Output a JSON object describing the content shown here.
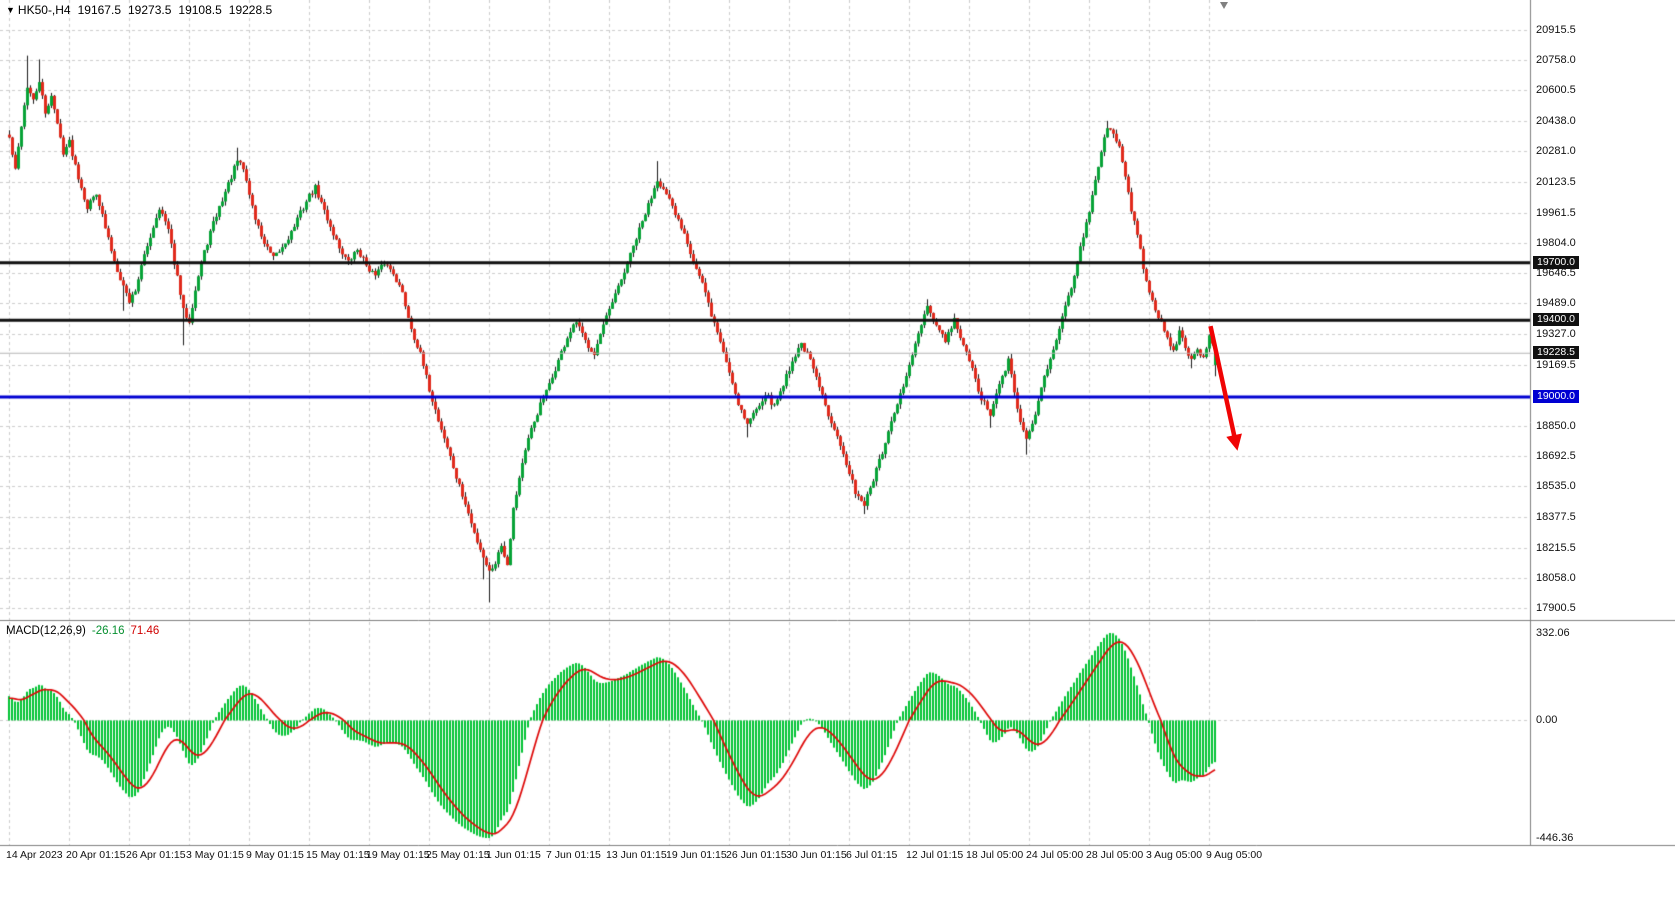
{
  "header": {
    "marker": "▼",
    "symbol": "HK50-,H4",
    "open": "19167.5",
    "high": "19273.5",
    "low": "19108.5",
    "close": "19228.5"
  },
  "macd_header": {
    "label": "MACD(12,26,9)",
    "macd_value": "-26.16",
    "signal_value": "71.46"
  },
  "axis": {
    "price_ticks": [
      "20915.5",
      "20758.0",
      "20600.5",
      "20438.0",
      "20281.0",
      "20123.5",
      "19961.5",
      "19804.0",
      "19646.5",
      "19489.0",
      "19327.0",
      "19169.5",
      "18850.0",
      "18692.5",
      "18535.0",
      "18377.5",
      "18215.5",
      "18058.0",
      "17900.5"
    ],
    "time_labels": [
      "14 Apr 2023",
      "20 Apr 01:15",
      "26 Apr 01:15",
      "3 May 01:15",
      "9 May 01:15",
      "15 May 01:15",
      "19 May 01:15",
      "25 May 01:15",
      "1 Jun 01:15",
      "7 Jun 01:15",
      "13 Jun 01:15",
      "19 Jun 01:15",
      "26 Jun 01:15",
      "30 Jun 01:15",
      "6 Jul 01:15",
      "12 Jul 01:15",
      "18 Jul 05:00",
      "24 Jul 05:00",
      "28 Jul 05:00",
      "3 Aug 05:00",
      "9 Aug 05:00"
    ],
    "macd_ticks": {
      "top": "332.06",
      "zero": "0.00",
      "bottom": "-446.36"
    }
  },
  "levels": [
    {
      "price": 19700.0,
      "label": "19700.0",
      "line_color": "#101010",
      "width": 3,
      "badge_bg": "#101010"
    },
    {
      "price": 19400.0,
      "label": "19400.0",
      "line_color": "#101010",
      "width": 3,
      "badge_bg": "#101010"
    },
    {
      "price": 19228.5,
      "label": "19228.5",
      "line_color": "#b4b4b4",
      "width": 1,
      "badge_bg": "#101010"
    },
    {
      "price": 19000.0,
      "label": "19000.0",
      "line_color": "#0000d2",
      "width": 3,
      "badge_bg": "#0000d2"
    }
  ],
  "chart_data": {
    "type": "candlestick",
    "symbol": "HK50",
    "timeframe": "H4",
    "bars": 403,
    "label_every": 20,
    "seed": 42,
    "noise": 32,
    "wick_noise": 24,
    "price_axis": {
      "min": 17838,
      "max": 21070
    },
    "last_bar": {
      "open": 19167.5,
      "high": 19273.5,
      "low": 19108.5,
      "close": 19228.5
    },
    "keypoints": [
      [
        0,
        20350
      ],
      [
        2,
        20180
      ],
      [
        4,
        20420
      ],
      [
        6,
        20620
      ],
      [
        8,
        20540
      ],
      [
        10,
        20650
      ],
      [
        12,
        20470
      ],
      [
        14,
        20580
      ],
      [
        16,
        20420
      ],
      [
        18,
        20280
      ],
      [
        20,
        20330
      ],
      [
        23,
        20150
      ],
      [
        26,
        19990
      ],
      [
        29,
        20070
      ],
      [
        32,
        19880
      ],
      [
        35,
        19710
      ],
      [
        38,
        19580
      ],
      [
        40,
        19500
      ],
      [
        42,
        19560
      ],
      [
        44,
        19680
      ],
      [
        47,
        19840
      ],
      [
        50,
        19990
      ],
      [
        53,
        19870
      ],
      [
        56,
        19620
      ],
      [
        58,
        19450
      ],
      [
        60,
        19400
      ],
      [
        62,
        19560
      ],
      [
        64,
        19700
      ],
      [
        67,
        19860
      ],
      [
        70,
        19990
      ],
      [
        73,
        20110
      ],
      [
        76,
        20230
      ],
      [
        78,
        20190
      ],
      [
        80,
        20060
      ],
      [
        82,
        19930
      ],
      [
        85,
        19800
      ],
      [
        88,
        19720
      ],
      [
        91,
        19780
      ],
      [
        94,
        19860
      ],
      [
        97,
        19960
      ],
      [
        100,
        20050
      ],
      [
        102,
        20090
      ],
      [
        104,
        20010
      ],
      [
        107,
        19890
      ],
      [
        110,
        19780
      ],
      [
        113,
        19700
      ],
      [
        116,
        19770
      ],
      [
        119,
        19690
      ],
      [
        122,
        19630
      ],
      [
        125,
        19700
      ],
      [
        128,
        19650
      ],
      [
        131,
        19540
      ],
      [
        134,
        19360
      ],
      [
        137,
        19220
      ],
      [
        140,
        19040
      ],
      [
        143,
        18880
      ],
      [
        146,
        18740
      ],
      [
        149,
        18580
      ],
      [
        152,
        18440
      ],
      [
        155,
        18290
      ],
      [
        158,
        18170
      ],
      [
        160,
        18090
      ],
      [
        162,
        18140
      ],
      [
        164,
        18230
      ],
      [
        166,
        18130
      ],
      [
        168,
        18420
      ],
      [
        171,
        18660
      ],
      [
        174,
        18830
      ],
      [
        177,
        18960
      ],
      [
        180,
        19060
      ],
      [
        183,
        19190
      ],
      [
        186,
        19310
      ],
      [
        189,
        19390
      ],
      [
        192,
        19290
      ],
      [
        195,
        19230
      ],
      [
        198,
        19370
      ],
      [
        201,
        19490
      ],
      [
        204,
        19610
      ],
      [
        207,
        19740
      ],
      [
        210,
        19870
      ],
      [
        213,
        20000
      ],
      [
        216,
        20140
      ],
      [
        218,
        20080
      ],
      [
        220,
        20020
      ],
      [
        222,
        19950
      ],
      [
        225,
        19860
      ],
      [
        228,
        19710
      ],
      [
        231,
        19590
      ],
      [
        234,
        19430
      ],
      [
        237,
        19290
      ],
      [
        240,
        19130
      ],
      [
        243,
        18970
      ],
      [
        246,
        18860
      ],
      [
        249,
        18940
      ],
      [
        252,
        19020
      ],
      [
        255,
        18950
      ],
      [
        258,
        19070
      ],
      [
        261,
        19190
      ],
      [
        264,
        19280
      ],
      [
        267,
        19190
      ],
      [
        270,
        19050
      ],
      [
        273,
        18910
      ],
      [
        276,
        18810
      ],
      [
        279,
        18640
      ],
      [
        282,
        18510
      ],
      [
        285,
        18440
      ],
      [
        288,
        18570
      ],
      [
        291,
        18710
      ],
      [
        294,
        18860
      ],
      [
        297,
        19010
      ],
      [
        300,
        19160
      ],
      [
        303,
        19330
      ],
      [
        306,
        19460
      ],
      [
        309,
        19370
      ],
      [
        312,
        19290
      ],
      [
        315,
        19400
      ],
      [
        318,
        19270
      ],
      [
        321,
        19140
      ],
      [
        324,
        18990
      ],
      [
        327,
        18910
      ],
      [
        330,
        19060
      ],
      [
        333,
        19190
      ],
      [
        336,
        18940
      ],
      [
        339,
        18770
      ],
      [
        342,
        18910
      ],
      [
        345,
        19110
      ],
      [
        348,
        19260
      ],
      [
        351,
        19410
      ],
      [
        354,
        19580
      ],
      [
        357,
        19780
      ],
      [
        360,
        19960
      ],
      [
        362,
        20120
      ],
      [
        364,
        20290
      ],
      [
        366,
        20410
      ],
      [
        368,
        20380
      ],
      [
        370,
        20300
      ],
      [
        372,
        20150
      ],
      [
        374,
        19980
      ],
      [
        376,
        19840
      ],
      [
        378,
        19680
      ],
      [
        380,
        19560
      ],
      [
        382,
        19460
      ],
      [
        384,
        19380
      ],
      [
        386,
        19300
      ],
      [
        388,
        19240
      ],
      [
        390,
        19340
      ],
      [
        392,
        19260
      ],
      [
        394,
        19190
      ],
      [
        396,
        19260
      ],
      [
        398,
        19200
      ],
      [
        400,
        19310
      ],
      [
        402,
        19228.5
      ]
    ],
    "wick_overrides": [
      {
        "bar": 6,
        "high": 20780
      },
      {
        "bar": 10,
        "high": 20760
      },
      {
        "bar": 38,
        "low": 19450
      },
      {
        "bar": 58,
        "low": 19270
      },
      {
        "bar": 76,
        "high": 20300
      },
      {
        "bar": 158,
        "low": 18050
      },
      {
        "bar": 160,
        "low": 17930
      },
      {
        "bar": 216,
        "high": 20230
      },
      {
        "bar": 246,
        "low": 18790
      },
      {
        "bar": 285,
        "low": 18390
      },
      {
        "bar": 306,
        "high": 19510
      },
      {
        "bar": 327,
        "low": 18840
      },
      {
        "bar": 339,
        "low": 18700
      },
      {
        "bar": 366,
        "high": 20440
      },
      {
        "bar": 394,
        "low": 19150
      }
    ],
    "macd": {
      "fast": 12,
      "slow": 26,
      "signal": 9,
      "axis_max": 332.06,
      "axis_min": -446.36,
      "preamble_bars": 30,
      "preamble_drop": 450
    },
    "colors": {
      "up": "#07a337",
      "down": "#e02a1c",
      "wick": "#1a1a1a",
      "grid": "#cdcdcd",
      "border": "#808080",
      "macd_hist": "#00c232",
      "signal": "#de0808"
    },
    "annotation_arrow": {
      "from_bar": 400.5,
      "from_price": 19370,
      "to_bar": 409.5,
      "to_price": 18720,
      "color": "#f00404",
      "width": 4.5
    }
  }
}
